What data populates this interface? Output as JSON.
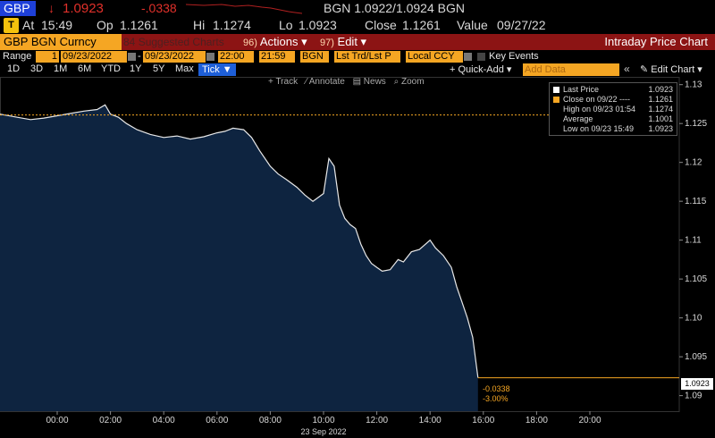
{
  "header": {
    "ticker": "GBP",
    "arrow": "↓",
    "last": "1.0923",
    "change": "-.0338",
    "bid_ask": "BGN  1.0922/1.0924  BGN",
    "flag_icon": "T",
    "at_label": "At",
    "time": "15:49",
    "op_label": "Op",
    "open": "1.1261",
    "hi_label": "Hi",
    "high": "1.1274",
    "lo_label": "Lo",
    "low": "1.0923",
    "close_label": "Close",
    "close": "1.1261",
    "value_label": "Value",
    "value_date": "09/27/22"
  },
  "toolbar": {
    "security": "GBP BGN Curncy",
    "suggested_num": "84",
    "suggested": "Suggested Charts",
    "actions_num": "96)",
    "actions": "Actions",
    "edit_num": "97)",
    "edit": "Edit",
    "title": "Intraday Price Chart"
  },
  "range": {
    "label": "Range",
    "count": "1",
    "start_date": "09/23/2022",
    "dash": "-",
    "end_date": "09/23/2022",
    "start_time": "22:00",
    "end_time": "21:59",
    "source": "BGN",
    "price_type": "Lst Trd/Lst P",
    "currency": "Local CCY",
    "key_events": "Key Events"
  },
  "periods": [
    "1D",
    "3D",
    "1M",
    "6M",
    "YTD",
    "1Y",
    "5Y",
    "Max"
  ],
  "tick_label": "Tick ▼",
  "quick_add": "+ Quick-Add ▾",
  "add_data_placeholder": "Add Data",
  "edit_chart": "✎ Edit Chart ▾",
  "chart_tools": [
    "+ Track",
    "⁄ Annotate",
    "▤ News",
    "⌕ Zoom"
  ],
  "legend": [
    {
      "label": "Last Price",
      "value": "1.0923",
      "color": "#ffffff"
    },
    {
      "label": "Close on 09/22 ----",
      "value": "1.1261",
      "color": "#f5a623"
    },
    {
      "label": "High on 09/23 01:54",
      "value": "1.1274",
      "color": "#000000"
    },
    {
      "label": "Average",
      "value": "1.1001",
      "color": "#000000"
    },
    {
      "label": "Low on 09/23 15:49",
      "value": "1.0923",
      "color": "#000000"
    }
  ],
  "price_box": "1.0923",
  "change_box": [
    "-0.0338",
    "-3.00%"
  ],
  "chart_data": {
    "type": "area",
    "x_ticks": [
      "00:00",
      "02:00",
      "04:00",
      "06:00",
      "08:00",
      "10:00",
      "12:00",
      "14:00",
      "16:00",
      "18:00",
      "20:00"
    ],
    "date_label": "23 Sep 2022",
    "y_ticks": [
      "1.13",
      "1.125",
      "1.12",
      "1.115",
      "1.11",
      "1.105",
      "1.10",
      "1.095",
      "1.09"
    ],
    "ylim": [
      1.088,
      1.131
    ],
    "close_ref": 1.1261,
    "x_hours": [
      -2,
      -1.5,
      -1,
      -0.5,
      0,
      0.5,
      1,
      1.5,
      1.8,
      2,
      2.3,
      2.6,
      3,
      3.5,
      4,
      4.5,
      5,
      5.5,
      6,
      6.3,
      6.6,
      7,
      7.3,
      7.6,
      8,
      8.3,
      8.6,
      9,
      9.3,
      9.6,
      10,
      10.2,
      10.4,
      10.6,
      10.8,
      11,
      11.2,
      11.4,
      11.6,
      11.8,
      12,
      12.2,
      12.5,
      12.8,
      13,
      13.3,
      13.6,
      14,
      14.2,
      14.5,
      14.8,
      15,
      15.2,
      15.4,
      15.6,
      15.8
    ],
    "y_values": [
      1.1262,
      1.1258,
      1.1255,
      1.1257,
      1.126,
      1.1263,
      1.1266,
      1.1268,
      1.1274,
      1.1262,
      1.1258,
      1.125,
      1.1242,
      1.1236,
      1.1232,
      1.1234,
      1.123,
      1.1233,
      1.1238,
      1.124,
      1.1244,
      1.1242,
      1.1232,
      1.1215,
      1.1195,
      1.1185,
      1.1178,
      1.1168,
      1.1158,
      1.115,
      1.116,
      1.1205,
      1.1195,
      1.1145,
      1.1128,
      1.112,
      1.1115,
      1.1095,
      1.108,
      1.107,
      1.1065,
      1.106,
      1.1062,
      1.1075,
      1.1072,
      1.1085,
      1.1088,
      1.11,
      1.109,
      1.108,
      1.1065,
      1.104,
      1.102,
      1.1,
      1.0975,
      1.0923
    ]
  }
}
